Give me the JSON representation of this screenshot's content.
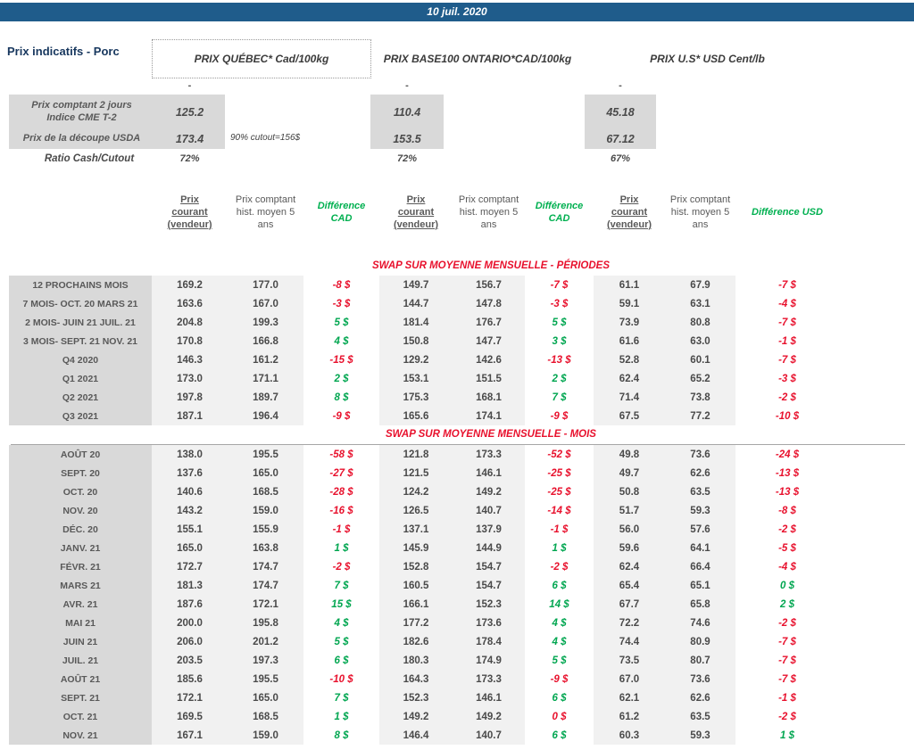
{
  "banner": {
    "date": "10 juil. 2020"
  },
  "page_title": "Prix indicatifs - Porc",
  "markets": {
    "quebec": "PRIX QUÉBEC* Cad/100kg",
    "ontario": "PRIX BASE100 ONTARIO*CAD/100kg",
    "us": "PRIX U.S* USD Cent/lb"
  },
  "spot": {
    "dash": "-",
    "row1": {
      "label": "Prix comptant 2 jours\nIndice CME T-2",
      "qc": "125.2",
      "on": "110.4",
      "us": "45.18"
    },
    "row2": {
      "label": "Prix de la découpe USDA",
      "qc": "173.4",
      "note": "90% cutout=156$",
      "on": "153.5",
      "us": "67.12"
    },
    "ratio": {
      "label": "Ratio Cash/Cutout",
      "qc": "72%",
      "on": "72%",
      "us": "67%"
    }
  },
  "table": {
    "headers": {
      "current": "Prix\ncourant\n(vendeur)",
      "hist": "Prix comptant hist. moyen 5 ans",
      "diff_cad": "Différence\nCAD",
      "diff_usd": "Différence USD"
    },
    "sections": [
      {
        "title": "SWAP SUR MOYENNE MENSUELLE - PÉRIODES",
        "rows": [
          [
            "12 PROCHAINS MOIS",
            [
              "169.2",
              "177.0",
              "-8 $",
              "neg"
            ],
            [
              "149.7",
              "156.7",
              "-7 $",
              "neg"
            ],
            [
              "61.1",
              "67.9",
              "-7 $",
              "neg"
            ]
          ],
          [
            "7 MOIS- OCT. 20 MARS 21",
            [
              "163.6",
              "167.0",
              "-3 $",
              "neg"
            ],
            [
              "144.7",
              "147.8",
              "-3 $",
              "neg"
            ],
            [
              "59.1",
              "63.1",
              "-4 $",
              "neg"
            ]
          ],
          [
            "2 MOIS- JUIN 21 JUIL. 21",
            [
              "204.8",
              "199.3",
              "5 $",
              "pos"
            ],
            [
              "181.4",
              "176.7",
              "5 $",
              "pos"
            ],
            [
              "73.9",
              "80.8",
              "-7 $",
              "neg"
            ]
          ],
          [
            "3 MOIS- SEPT. 21 NOV. 21",
            [
              "170.8",
              "166.8",
              "4 $",
              "pos"
            ],
            [
              "150.8",
              "147.7",
              "3 $",
              "pos"
            ],
            [
              "61.6",
              "63.0",
              "-1 $",
              "neg"
            ]
          ],
          [
            "Q4 2020",
            [
              "146.3",
              "161.2",
              "-15 $",
              "neg"
            ],
            [
              "129.2",
              "142.6",
              "-13 $",
              "neg"
            ],
            [
              "52.8",
              "60.1",
              "-7 $",
              "neg"
            ]
          ],
          [
            "Q1 2021",
            [
              "173.0",
              "171.1",
              "2 $",
              "pos"
            ],
            [
              "153.1",
              "151.5",
              "2 $",
              "pos"
            ],
            [
              "62.4",
              "65.2",
              "-3 $",
              "neg"
            ]
          ],
          [
            "Q2 2021",
            [
              "197.8",
              "189.7",
              "8 $",
              "pos"
            ],
            [
              "175.3",
              "168.1",
              "7 $",
              "pos"
            ],
            [
              "71.4",
              "73.8",
              "-2 $",
              "neg"
            ]
          ],
          [
            "Q3 2021",
            [
              "187.1",
              "196.4",
              "-9 $",
              "neg"
            ],
            [
              "165.6",
              "174.1",
              "-9 $",
              "neg"
            ],
            [
              "67.5",
              "77.2",
              "-10 $",
              "neg"
            ]
          ]
        ]
      },
      {
        "title": "SWAP SUR MOYENNE MENSUELLE - MOIS",
        "rows": [
          [
            "AOÛT 20",
            [
              "138.0",
              "195.5",
              "-58 $",
              "neg"
            ],
            [
              "121.8",
              "173.3",
              "-52 $",
              "neg"
            ],
            [
              "49.8",
              "73.6",
              "-24 $",
              "neg"
            ]
          ],
          [
            "SEPT. 20",
            [
              "137.6",
              "165.0",
              "-27 $",
              "neg"
            ],
            [
              "121.5",
              "146.1",
              "-25 $",
              "neg"
            ],
            [
              "49.7",
              "62.6",
              "-13 $",
              "neg"
            ]
          ],
          [
            "OCT. 20",
            [
              "140.6",
              "168.5",
              "-28 $",
              "neg"
            ],
            [
              "124.2",
              "149.2",
              "-25 $",
              "neg"
            ],
            [
              "50.8",
              "63.5",
              "-13 $",
              "neg"
            ]
          ],
          [
            "NOV. 20",
            [
              "143.2",
              "159.0",
              "-16 $",
              "neg"
            ],
            [
              "126.5",
              "140.7",
              "-14 $",
              "neg"
            ],
            [
              "51.7",
              "59.3",
              "-8 $",
              "neg"
            ]
          ],
          [
            "DÉC. 20",
            [
              "155.1",
              "155.9",
              "-1 $",
              "neg"
            ],
            [
              "137.1",
              "137.9",
              "-1 $",
              "neg"
            ],
            [
              "56.0",
              "57.6",
              "-2 $",
              "neg"
            ]
          ],
          [
            "JANV. 21",
            [
              "165.0",
              "163.8",
              "1 $",
              "pos"
            ],
            [
              "145.9",
              "144.9",
              "1 $",
              "pos"
            ],
            [
              "59.6",
              "64.1",
              "-5 $",
              "neg"
            ]
          ],
          [
            "FÉVR. 21",
            [
              "172.7",
              "174.7",
              "-2 $",
              "neg"
            ],
            [
              "152.8",
              "154.7",
              "-2 $",
              "neg"
            ],
            [
              "62.4",
              "66.4",
              "-4 $",
              "neg"
            ]
          ],
          [
            "MARS 21",
            [
              "181.3",
              "174.7",
              "7 $",
              "pos"
            ],
            [
              "160.5",
              "154.7",
              "6 $",
              "pos"
            ],
            [
              "65.4",
              "65.1",
              "0 $",
              "pos"
            ]
          ],
          [
            "AVR. 21",
            [
              "187.6",
              "172.1",
              "15 $",
              "pos"
            ],
            [
              "166.1",
              "152.3",
              "14 $",
              "pos"
            ],
            [
              "67.7",
              "65.8",
              "2 $",
              "pos"
            ]
          ],
          [
            "MAI 21",
            [
              "200.0",
              "195.8",
              "4 $",
              "pos"
            ],
            [
              "177.2",
              "173.6",
              "4 $",
              "pos"
            ],
            [
              "72.2",
              "74.6",
              "-2 $",
              "neg"
            ]
          ],
          [
            "JUIN 21",
            [
              "206.0",
              "201.2",
              "5 $",
              "pos"
            ],
            [
              "182.6",
              "178.4",
              "4 $",
              "pos"
            ],
            [
              "74.4",
              "80.9",
              "-7 $",
              "neg"
            ]
          ],
          [
            "JUIL. 21",
            [
              "203.5",
              "197.3",
              "6 $",
              "pos"
            ],
            [
              "180.3",
              "174.9",
              "5 $",
              "pos"
            ],
            [
              "73.5",
              "80.7",
              "-7 $",
              "neg"
            ]
          ],
          [
            "AOÛT 21",
            [
              "185.6",
              "195.5",
              "-10 $",
              "neg"
            ],
            [
              "164.3",
              "173.3",
              "-9 $",
              "neg"
            ],
            [
              "67.0",
              "73.6",
              "-7 $",
              "neg"
            ]
          ],
          [
            "SEPT. 21",
            [
              "172.1",
              "165.0",
              "7 $",
              "pos"
            ],
            [
              "152.3",
              "146.1",
              "6 $",
              "pos"
            ],
            [
              "62.1",
              "62.6",
              "-1 $",
              "neg"
            ]
          ],
          [
            "OCT. 21",
            [
              "169.5",
              "168.5",
              "1 $",
              "pos"
            ],
            [
              "149.2",
              "149.2",
              "0 $",
              "neg"
            ],
            [
              "61.2",
              "63.5",
              "-2 $",
              "neg"
            ]
          ],
          [
            "NOV. 21",
            [
              "167.1",
              "159.0",
              "8 $",
              "pos"
            ],
            [
              "146.4",
              "140.7",
              "6 $",
              "pos"
            ],
            [
              "60.3",
              "59.3",
              "1 $",
              "pos"
            ]
          ]
        ]
      }
    ]
  },
  "colors": {
    "banner_blue": "#1F5C8B",
    "negative_red": "#E8112D",
    "positive_green": "#00A650",
    "label_gray_bg": "#D9D9D9",
    "cell_gray_bg": "#F1F1F1",
    "text_gray": "#595959"
  }
}
